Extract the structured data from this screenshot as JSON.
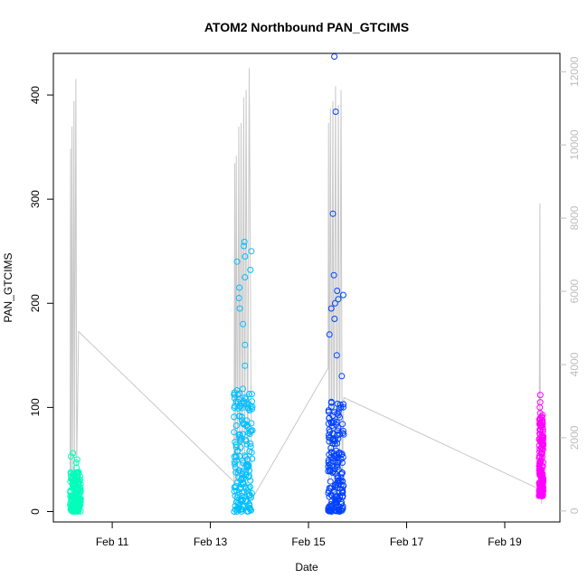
{
  "chart_data": {
    "type": "scatter",
    "title": "ATOM2 Northbound PAN_GTCIMS",
    "xlabel": "Date",
    "ylabel": "PAN_GTCIMS",
    "x_unit": "date",
    "xlim": [
      "2016-02-09 19:12",
      "2016-02-20 03:00"
    ],
    "ylim": [
      -10,
      440
    ],
    "y2lim": [
      -300,
      12500
    ],
    "x_ticks": [
      {
        "label": "Feb 11",
        "value": "2016-02-11"
      },
      {
        "label": "Feb 13",
        "value": "2016-02-13"
      },
      {
        "label": "Feb 15",
        "value": "2016-02-15"
      },
      {
        "label": "Feb 17",
        "value": "2016-02-17"
      },
      {
        "label": "Feb 19",
        "value": "2016-02-19"
      }
    ],
    "y_ticks": [
      0,
      100,
      200,
      300,
      400
    ],
    "y2_ticks": [
      0,
      2000,
      4000,
      6000,
      8000,
      10000,
      12000
    ],
    "grid": false,
    "series": [
      {
        "color": "#00ffbb",
        "marker": "open-circle",
        "axis": "left",
        "x_range": [
          "2016-02-10 03:24",
          "2016-02-10 08:38"
        ],
        "y_dense_range": [
          0,
          38
        ],
        "y_outliers": [
          42,
          47,
          50,
          53,
          56
        ]
      },
      {
        "color": "#00bfff",
        "marker": "open-circle",
        "axis": "left",
        "x_range": [
          "2016-02-13 11:31",
          "2016-02-13 20:38"
        ],
        "y_dense_range": [
          0,
          120
        ],
        "y_outliers": [
          140,
          160,
          180,
          195,
          205,
          215,
          225,
          232,
          240,
          245,
          250,
          255,
          259
        ]
      },
      {
        "color": "#0040ff",
        "marker": "open-circle",
        "axis": "left",
        "x_range": [
          "2016-02-15 09:36",
          "2016-02-15 17:17"
        ],
        "y_dense_range": [
          0,
          110
        ],
        "y_outliers": [
          100,
          130,
          150,
          170,
          185,
          195,
          200,
          204,
          208,
          212,
          227,
          286,
          384,
          437
        ]
      },
      {
        "color": "#ff00ff",
        "marker": "open-circle",
        "axis": "left",
        "x_range": [
          "2016-02-19 16:48",
          "2016-02-19 18:50"
        ],
        "y_dense_range": [
          15,
          95
        ],
        "y_outliers": [
          100,
          105,
          112
        ]
      }
    ],
    "right_axis_series": {
      "color": "#c8c8c8",
      "type": "line",
      "axis": "right",
      "points": [
        [
          "2016-02-10 03:24",
          800
        ],
        [
          "2016-02-10 03:36",
          9900
        ],
        [
          "2016-02-10 03:48",
          700
        ],
        [
          "2016-02-10 04:19",
          10500
        ],
        [
          "2016-02-10 04:31",
          800
        ],
        [
          "2016-02-10 05:17",
          11200
        ],
        [
          "2016-02-10 05:29",
          900
        ],
        [
          "2016-02-10 06:14",
          11800
        ],
        [
          "2016-02-10 06:38",
          1200
        ],
        [
          "2016-02-10 07:34",
          4900
        ],
        [
          "2016-02-13 11:31",
          800
        ],
        [
          "2016-02-13 11:55",
          9500
        ],
        [
          "2016-02-13 12:14",
          700
        ],
        [
          "2016-02-13 12:41",
          9700
        ],
        [
          "2016-02-13 13:12",
          800
        ],
        [
          "2016-02-13 13:55",
          10500
        ],
        [
          "2016-02-13 14:22",
          700
        ],
        [
          "2016-02-13 15:00",
          10600
        ],
        [
          "2016-02-13 15:34",
          900
        ],
        [
          "2016-02-13 16:19",
          11300
        ],
        [
          "2016-02-13 16:48",
          800
        ],
        [
          "2016-02-13 17:31",
          11500
        ],
        [
          "2016-02-13 18:12",
          600
        ],
        [
          "2016-02-13 19:00",
          12100
        ],
        [
          "2016-02-13 20:10",
          300
        ],
        [
          "2016-02-15 09:36",
          3900
        ],
        [
          "2016-02-15 09:48",
          10600
        ],
        [
          "2016-02-15 10:05",
          800
        ],
        [
          "2016-02-15 10:43",
          11000
        ],
        [
          "2016-02-15 11:16",
          900
        ],
        [
          "2016-02-15 11:55",
          11200
        ],
        [
          "2016-02-15 12:29",
          700
        ],
        [
          "2016-02-15 13:12",
          11600
        ],
        [
          "2016-02-15 13:53",
          800
        ],
        [
          "2016-02-15 14:38",
          11100
        ],
        [
          "2016-02-15 15:12",
          900
        ],
        [
          "2016-02-15 15:55",
          11500
        ],
        [
          "2016-02-15 16:29",
          800
        ],
        [
          "2016-02-15 17:17",
          3100
        ],
        [
          "2016-02-19 16:48",
          600
        ],
        [
          "2016-02-19 17:12",
          8400
        ],
        [
          "2016-02-19 17:24",
          800
        ],
        [
          "2016-02-19 18:00",
          200
        ],
        [
          "2016-02-19 18:36",
          1200
        ]
      ]
    }
  }
}
